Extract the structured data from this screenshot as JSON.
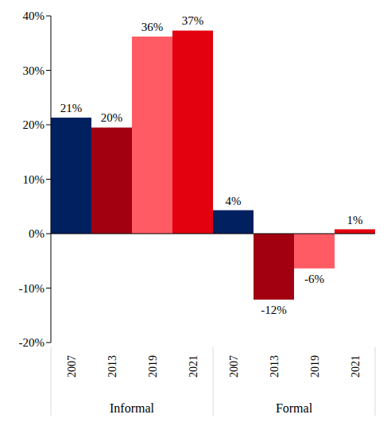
{
  "chart_data": {
    "type": "bar",
    "categories": [
      "2007",
      "2013",
      "2019",
      "2021",
      "2007",
      "2013",
      "2019",
      "2021"
    ],
    "groups": [
      {
        "label": "Informal",
        "count": 4
      },
      {
        "label": "Formal",
        "count": 4
      }
    ],
    "values": [
      21.3,
      19.5,
      36.2,
      37.3,
      4.3,
      -12.1,
      -6.4,
      0.8
    ],
    "value_labels": [
      "21%",
      "20%",
      "36%",
      "37%",
      "4%",
      "-12%",
      "-6%",
      "1%"
    ],
    "colors": [
      "#002060",
      "#a20010",
      "#ff5b64",
      "#e3000f",
      "#002060",
      "#a20010",
      "#ff5b64",
      "#e3000f"
    ],
    "ylim": [
      -20,
      40
    ],
    "yticks": [
      {
        "value": -20,
        "label": "-20%"
      },
      {
        "value": -10,
        "label": "-10%"
      },
      {
        "value": 0,
        "label": "0%"
      },
      {
        "value": 10,
        "label": "10%"
      },
      {
        "value": 20,
        "label": "20%"
      },
      {
        "value": 30,
        "label": "30%"
      },
      {
        "value": 40,
        "label": "40%"
      }
    ],
    "grid": false,
    "data_labels": true
  }
}
